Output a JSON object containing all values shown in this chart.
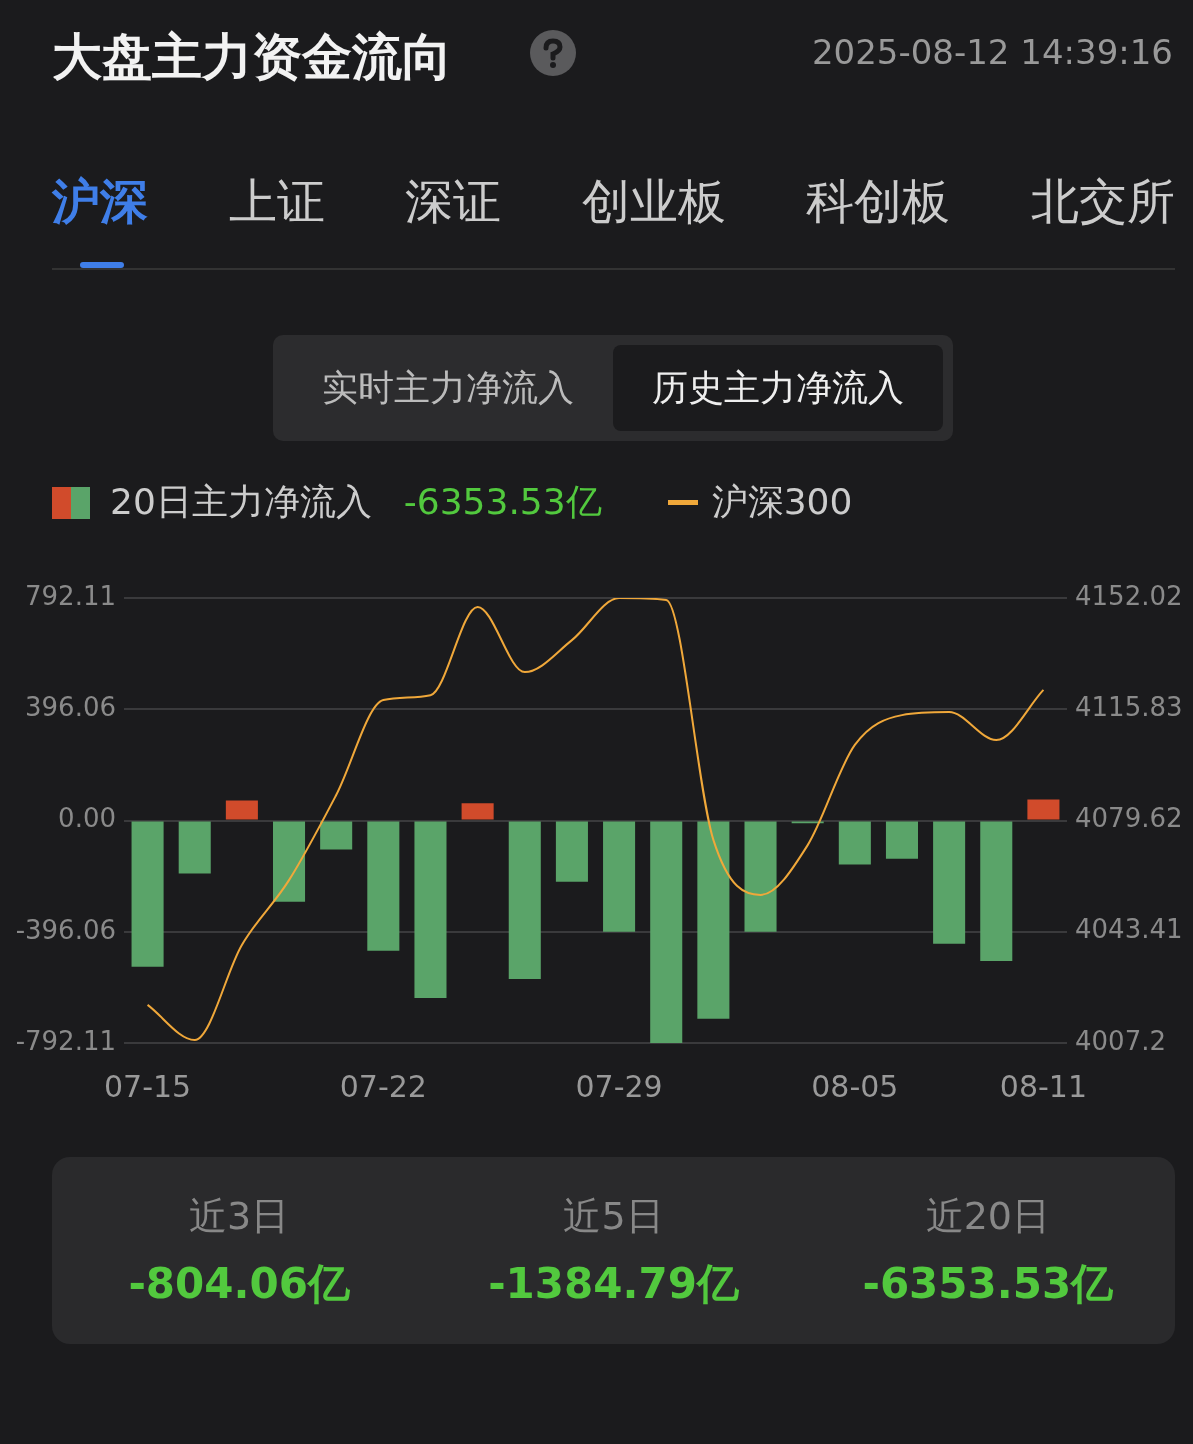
{
  "chart_data": {
    "type": "bar",
    "title": "大盘主力资金流向",
    "annotations": [
      "2025-08-12 14:39:16",
      "沪深",
      "上证",
      "深证",
      "创业板",
      "科创板",
      "北交所",
      "实时主力净流入",
      "历史主力净流入",
      "-6353.53亿",
      "近3日",
      "-804.06亿",
      "近5日",
      "-1384.79亿",
      "近20日",
      "-6353.53亿"
    ],
    "categories": [
      "07-15",
      null,
      null,
      null,
      null,
      "07-22",
      null,
      null,
      null,
      null,
      "07-29",
      null,
      null,
      null,
      null,
      "08-05",
      null,
      null,
      null,
      "08-11"
    ],
    "series": [
      {
        "name": "20日主力净流入",
        "colors": [
          "#5aa469",
          "#5aa469",
          "#d14b2b",
          "#5aa469",
          "#5aa469",
          "#5aa469",
          "#5aa469",
          "#d14b2b",
          "#5aa469",
          "#5aa469",
          "#5aa469",
          "#5aa469",
          "#5aa469",
          "#5aa469",
          "#5aa469",
          "#5aa469",
          "#5aa469",
          "#5aa469",
          "#5aa469",
          "#d14b2b"
        ],
        "values": [
          -521,
          -189,
          71,
          -289,
          -103,
          -464,
          -632,
          61,
          -564,
          -218,
          -396,
          -792,
          -706,
          -396,
          -10,
          -157,
          -136,
          -439,
          -500,
          75
        ]
      },
      {
        "name": "沪深300",
        "type": "line",
        "axis": "y2",
        "color": "#f0a83a",
        "values": [
          4019.6,
          4008.2,
          4039.1,
          4060.2,
          4087.9,
          4118.8,
          4120.4,
          4149.1,
          4127.9,
          4138.3,
          4152.0,
          4151.4,
          4073.3,
          4055.4,
          4071.6,
          4104.2,
          4113.9,
          4114.9,
          4105.8,
          4122.1
        ]
      }
    ],
    "ylim": [
      -792.11,
      792.11
    ],
    "yticks": [
      -792.11,
      -396.06,
      {
        "value": 0,
        "label": "0.00"
      },
      396.06,
      792.11
    ],
    "y2lim": [
      4007.2,
      4152.02
    ],
    "y2ticks": [
      4007.2,
      4043.41,
      4079.62,
      4115.83,
      4152.02
    ],
    "grid": "y",
    "legend": "top left",
    "marker": "none"
  }
}
